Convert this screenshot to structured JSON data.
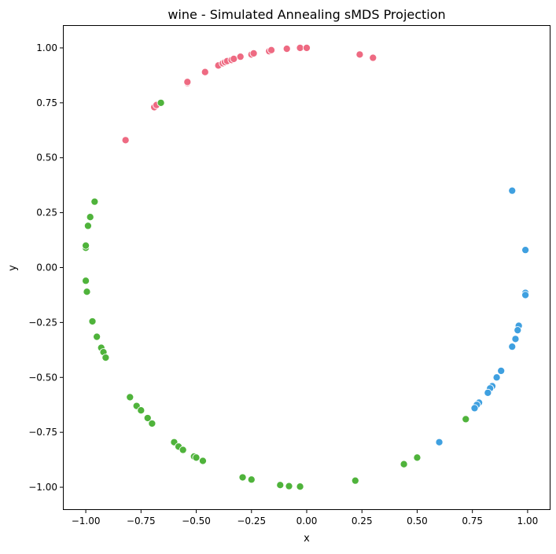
{
  "chart_data": {
    "type": "scatter",
    "title": "wine - Simulated Annealing sMDS Projection",
    "xlabel": "x",
    "ylabel": "y",
    "xlim": [
      -1.1,
      1.1
    ],
    "ylim": [
      -1.1,
      1.1
    ],
    "x_ticks": [
      -1.0,
      -0.75,
      -0.5,
      -0.25,
      0.0,
      0.25,
      0.5,
      0.75,
      1.0
    ],
    "x_tick_labels": [
      "−1.00",
      "−0.75",
      "−0.50",
      "−0.25",
      "0.00",
      "0.25",
      "0.50",
      "0.75",
      "1.00"
    ],
    "y_ticks": [
      1.0,
      0.75,
      0.5,
      0.25,
      0.0,
      -0.25,
      -0.5,
      -0.75,
      -1.0
    ],
    "y_tick_labels": [
      "1.00",
      "0.75",
      "0.50",
      "0.25",
      "0.00",
      "−0.25",
      "−0.50",
      "−0.75",
      "−1.00"
    ],
    "grid": false,
    "legend": "none",
    "series": [
      {
        "color": "#ee6a82",
        "points": [
          [
            -0.82,
            0.58
          ],
          [
            -0.69,
            0.73
          ],
          [
            -0.68,
            0.74
          ],
          [
            -0.54,
            0.84
          ],
          [
            -0.54,
            0.845
          ],
          [
            -0.46,
            0.89
          ],
          [
            -0.4,
            0.92
          ],
          [
            -0.38,
            0.93
          ],
          [
            -0.37,
            0.935
          ],
          [
            -0.36,
            0.94
          ],
          [
            -0.34,
            0.945
          ],
          [
            -0.33,
            0.95
          ],
          [
            -0.3,
            0.96
          ],
          [
            -0.25,
            0.97
          ],
          [
            -0.24,
            0.975
          ],
          [
            -0.17,
            0.985
          ],
          [
            -0.16,
            0.99
          ],
          [
            -0.09,
            0.996
          ],
          [
            -0.03,
            1.0
          ],
          [
            0.0,
            1.0
          ],
          [
            0.24,
            0.97
          ],
          [
            0.3,
            0.955
          ]
        ]
      },
      {
        "color": "#4fb33b",
        "points": [
          [
            -0.66,
            0.75
          ],
          [
            -0.96,
            0.3
          ],
          [
            -0.98,
            0.23
          ],
          [
            -0.99,
            0.19
          ],
          [
            -1.0,
            0.09
          ],
          [
            -1.0,
            0.1
          ],
          [
            -1.0,
            -0.06
          ],
          [
            -0.995,
            -0.11
          ],
          [
            -0.97,
            -0.245
          ],
          [
            -0.95,
            -0.315
          ],
          [
            -0.93,
            -0.365
          ],
          [
            -0.92,
            -0.385
          ],
          [
            -0.91,
            -0.41
          ],
          [
            -0.8,
            -0.59
          ],
          [
            -0.77,
            -0.63
          ],
          [
            -0.75,
            -0.65
          ],
          [
            -0.72,
            -0.685
          ],
          [
            -0.7,
            -0.71
          ],
          [
            -0.6,
            -0.795
          ],
          [
            -0.58,
            -0.815
          ],
          [
            -0.56,
            -0.83
          ],
          [
            -0.51,
            -0.86
          ],
          [
            -0.5,
            -0.865
          ],
          [
            -0.47,
            -0.88
          ],
          [
            -0.29,
            -0.955
          ],
          [
            -0.25,
            -0.965
          ],
          [
            -0.12,
            -0.99
          ],
          [
            -0.08,
            -0.995
          ],
          [
            -0.03,
            -0.997
          ],
          [
            0.22,
            -0.97
          ],
          [
            0.44,
            -0.895
          ],
          [
            0.5,
            -0.865
          ],
          [
            0.72,
            -0.69
          ]
        ]
      },
      {
        "color": "#3fa0e0",
        "points": [
          [
            0.93,
            0.35
          ],
          [
            0.99,
            0.08
          ],
          [
            0.99,
            -0.115
          ],
          [
            0.99,
            -0.125
          ],
          [
            0.96,
            -0.265
          ],
          [
            0.955,
            -0.285
          ],
          [
            0.945,
            -0.325
          ],
          [
            0.93,
            -0.36
          ],
          [
            0.88,
            -0.47
          ],
          [
            0.86,
            -0.5
          ],
          [
            0.84,
            -0.54
          ],
          [
            0.83,
            -0.55
          ],
          [
            0.82,
            -0.57
          ],
          [
            0.78,
            -0.615
          ],
          [
            0.77,
            -0.625
          ],
          [
            0.76,
            -0.64
          ],
          [
            0.6,
            -0.795
          ]
        ]
      }
    ]
  }
}
